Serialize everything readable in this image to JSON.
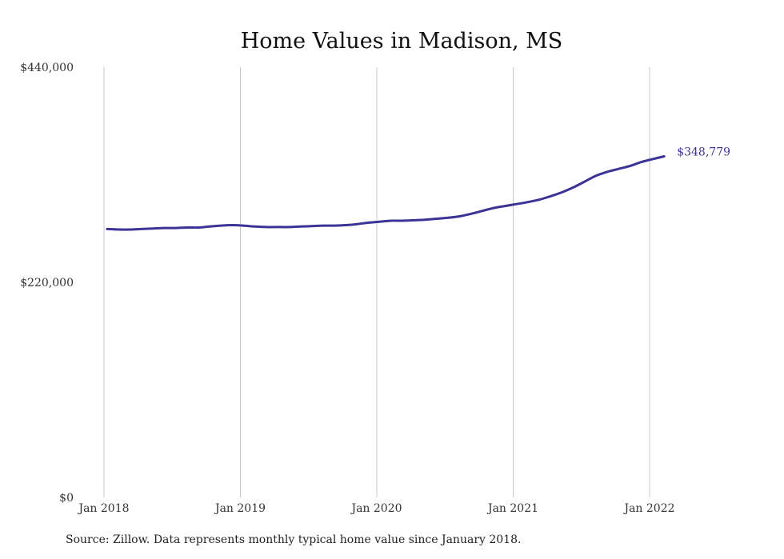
{
  "chart_data": {
    "type": "line",
    "title": "Home Values in Madison, MS",
    "xlabel": "",
    "ylabel": "",
    "ylim": [
      0,
      440000
    ],
    "yticks": [
      0,
      220000,
      440000
    ],
    "ytick_labels": [
      "$0",
      "$220,000",
      "$440,000"
    ],
    "xticks": [
      "2018-01",
      "2019-01",
      "2020-01",
      "2021-01",
      "2022-01"
    ],
    "xtick_labels": [
      "Jan 2018",
      "Jan 2019",
      "Jan 2020",
      "Jan 2021",
      "Jan 2022"
    ],
    "grid": "vertical",
    "color": "#3b3396",
    "series": [
      {
        "points": [
          [
            "2018-01",
            274500
          ],
          [
            "2018-02",
            274000
          ],
          [
            "2018-03",
            274000
          ],
          [
            "2018-04",
            274500
          ],
          [
            "2018-05",
            275000
          ],
          [
            "2018-06",
            275500
          ],
          [
            "2018-07",
            275500
          ],
          [
            "2018-08",
            276000
          ],
          [
            "2018-09",
            276000
          ],
          [
            "2018-10",
            277000
          ],
          [
            "2018-11",
            278000
          ],
          [
            "2018-12",
            278500
          ],
          [
            "2019-01",
            278000
          ],
          [
            "2019-02",
            277000
          ],
          [
            "2019-03",
            276500
          ],
          [
            "2019-04",
            276500
          ],
          [
            "2019-05",
            276500
          ],
          [
            "2019-06",
            277000
          ],
          [
            "2019-07",
            277500
          ],
          [
            "2019-08",
            278000
          ],
          [
            "2019-09",
            278000
          ],
          [
            "2019-10",
            278500
          ],
          [
            "2019-11",
            279500
          ],
          [
            "2019-12",
            281000
          ],
          [
            "2020-01",
            282000
          ],
          [
            "2020-02",
            283000
          ],
          [
            "2020-03",
            283000
          ],
          [
            "2020-04",
            283500
          ],
          [
            "2020-05",
            284000
          ],
          [
            "2020-06",
            285000
          ],
          [
            "2020-07",
            286000
          ],
          [
            "2020-08",
            287500
          ],
          [
            "2020-09",
            290000
          ],
          [
            "2020-10",
            293000
          ],
          [
            "2020-11",
            296000
          ],
          [
            "2020-12",
            298000
          ],
          [
            "2021-01",
            300000
          ],
          [
            "2021-02",
            302000
          ],
          [
            "2021-03",
            304500
          ],
          [
            "2021-04",
            308000
          ],
          [
            "2021-05",
            312000
          ],
          [
            "2021-06",
            317000
          ],
          [
            "2021-07",
            323000
          ],
          [
            "2021-08",
            329000
          ],
          [
            "2021-09",
            333000
          ],
          [
            "2021-10",
            336000
          ],
          [
            "2021-11",
            339000
          ],
          [
            "2021-12",
            343000
          ],
          [
            "2022-01",
            346000
          ],
          [
            "2022-02",
            348779
          ]
        ]
      }
    ],
    "end_label": "$348,779"
  },
  "source_note": "Source: Zillow. Data represents monthly typical home value since January 2018."
}
